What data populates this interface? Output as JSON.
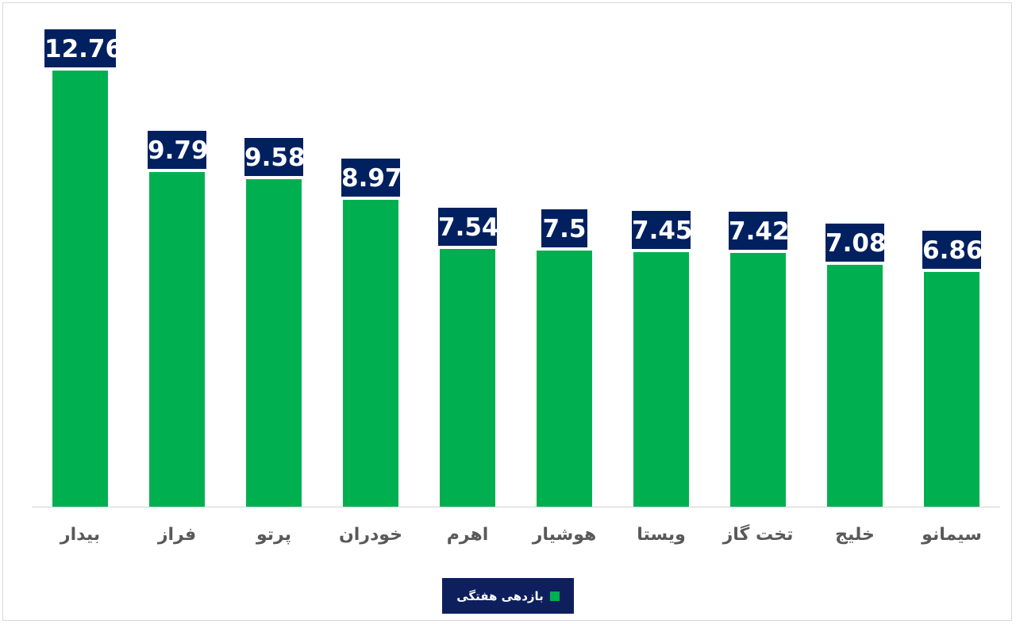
{
  "chart_data": {
    "type": "bar",
    "title": "",
    "xlabel": "",
    "ylabel": "",
    "categories": [
      "بیدار",
      "فراز",
      "پرتو",
      "خودران",
      "اهرم",
      "هوشیار",
      "ویستا",
      "تخت گاز",
      "خلیج",
      "سیمانو"
    ],
    "series": [
      {
        "name": "بازدهی هفتگی",
        "color": "#00b050",
        "values": [
          12.76,
          9.79,
          9.58,
          8.97,
          7.54,
          7.5,
          7.45,
          7.42,
          7.08,
          6.86
        ]
      }
    ],
    "ylim": [
      0,
      13
    ],
    "grid": false,
    "legend_position": "bottom",
    "data_labels": [
      "12.76",
      "9.79",
      "9.58",
      "8.97",
      "7.54",
      "7.5",
      "7.45",
      "7.42",
      "7.08",
      "6.86"
    ],
    "data_label_bg": "#002060"
  },
  "legend": {
    "label": "بازدهی هفتگی"
  }
}
